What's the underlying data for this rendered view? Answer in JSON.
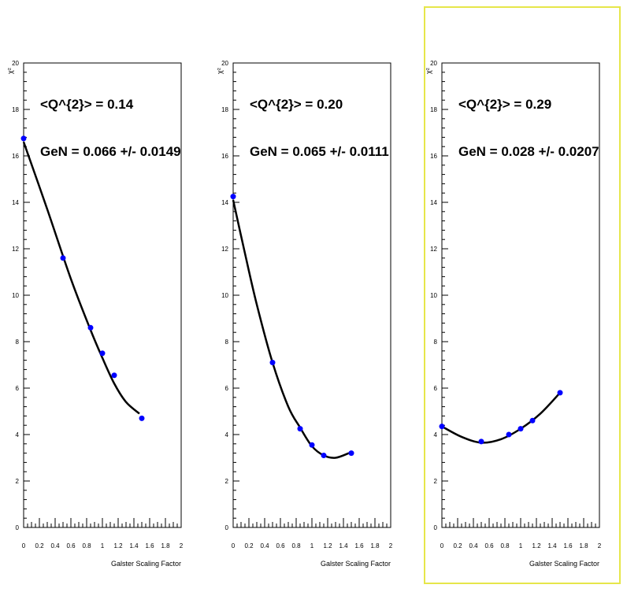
{
  "panels": [
    {
      "annotation_q2": "<Q^{2}> = 0.14",
      "annotation_gen": "GeN = 0.066 +/- 0.0149",
      "selected": false
    },
    {
      "annotation_q2": "<Q^{2}> = 0.20",
      "annotation_gen": "GeN = 0.065 +/- 0.0111",
      "selected": false
    },
    {
      "annotation_q2": "<Q^{2}> = 0.29",
      "annotation_gen": "GeN = 0.028 +/- 0.0207",
      "selected": true
    }
  ],
  "colors": {
    "marker": "#0000ff",
    "fit_line": "#000000",
    "axes": "#000000",
    "selection_frame": "#e6e64a"
  },
  "chart_data": [
    {
      "type": "scatter",
      "title": "",
      "xlabel": "Galster Scaling Factor",
      "ylabel": "χ²",
      "xlim": [
        0,
        2
      ],
      "ylim": [
        0,
        20
      ],
      "xticks": [
        "0",
        "0.2",
        "0.4",
        "0.6",
        "0.8",
        "1",
        "1.2",
        "1.4",
        "1.6",
        "1.8",
        "2"
      ],
      "yticks": [
        "0",
        "2",
        "4",
        "6",
        "8",
        "10",
        "12",
        "14",
        "16",
        "18",
        "20"
      ],
      "points": {
        "x": [
          0,
          0.5,
          0.85,
          1.0,
          1.15,
          1.5
        ],
        "y": [
          16.75,
          11.6,
          8.6,
          7.5,
          6.55,
          4.7
        ]
      },
      "fit": {
        "x": [
          0,
          0.3,
          0.6,
          0.85,
          1.0,
          1.15,
          1.3,
          1.47
        ],
        "y": [
          16.6,
          13.7,
          10.7,
          8.5,
          7.3,
          6.2,
          5.4,
          4.9
        ]
      },
      "grid": false
    },
    {
      "type": "scatter",
      "title": "",
      "xlabel": "Galster Scaling Factor",
      "ylabel": "χ²",
      "xlim": [
        0,
        2
      ],
      "ylim": [
        0,
        20
      ],
      "xticks": [
        "0",
        "0.2",
        "0.4",
        "0.6",
        "0.8",
        "1",
        "1.2",
        "1.4",
        "1.6",
        "1.8",
        "2"
      ],
      "yticks": [
        "0",
        "2",
        "4",
        "6",
        "8",
        "10",
        "12",
        "14",
        "16",
        "18",
        "20"
      ],
      "points": {
        "x": [
          0,
          0.5,
          0.85,
          1.0,
          1.15,
          1.5
        ],
        "y": [
          14.25,
          7.1,
          4.25,
          3.55,
          3.1,
          3.2
        ]
      },
      "fit": {
        "x": [
          0,
          0.15,
          0.3,
          0.5,
          0.7,
          0.85,
          1.0,
          1.15,
          1.3,
          1.47
        ],
        "y": [
          14.1,
          11.8,
          9.6,
          7.1,
          5.2,
          4.3,
          3.5,
          3.1,
          3.0,
          3.2
        ]
      },
      "grid": false
    },
    {
      "type": "scatter",
      "title": "",
      "xlabel": "Galster Scaling Factor",
      "ylabel": "χ²",
      "xlim": [
        0,
        2
      ],
      "ylim": [
        0,
        20
      ],
      "xticks": [
        "0",
        "0.2",
        "0.4",
        "0.6",
        "0.8",
        "1",
        "1.2",
        "1.4",
        "1.6",
        "1.8",
        "2"
      ],
      "yticks": [
        "0",
        "2",
        "4",
        "6",
        "8",
        "10",
        "12",
        "14",
        "16",
        "18",
        "20"
      ],
      "points": {
        "x": [
          0,
          0.5,
          0.85,
          1.0,
          1.15,
          1.5
        ],
        "y": [
          4.35,
          3.7,
          4.0,
          4.25,
          4.6,
          5.8
        ]
      },
      "fit": {
        "x": [
          0,
          0.25,
          0.5,
          0.75,
          1.0,
          1.25,
          1.5
        ],
        "y": [
          4.35,
          3.9,
          3.65,
          3.8,
          4.25,
          4.9,
          5.8
        ]
      },
      "grid": false
    }
  ]
}
